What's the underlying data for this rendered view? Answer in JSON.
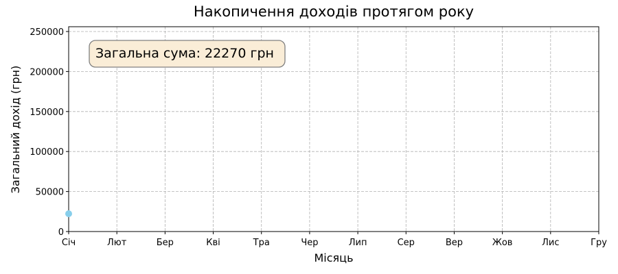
{
  "chart_data": {
    "type": "line",
    "title": "Накопичення доходів протягом року",
    "x_label": "Місяць",
    "y_label": "Загальний дохід (грн)",
    "annotation": "Загальна сума: 22270 грн",
    "categories": [
      "Січ",
      "Лют",
      "Бер",
      "Кві",
      "Тра",
      "Чер",
      "Лип",
      "Сер",
      "Вер",
      "Жов",
      "Лис",
      "Гру"
    ],
    "series": [
      {
        "name": "Загальний дохід",
        "color": "#87ceeb",
        "values": [
          22270,
          null,
          null,
          null,
          null,
          null,
          null,
          null,
          null,
          null,
          null,
          null
        ]
      }
    ],
    "ylim": [
      0,
      256000
    ],
    "yticks": [
      0,
      50000,
      100000,
      150000,
      200000,
      250000
    ],
    "grid": true
  }
}
